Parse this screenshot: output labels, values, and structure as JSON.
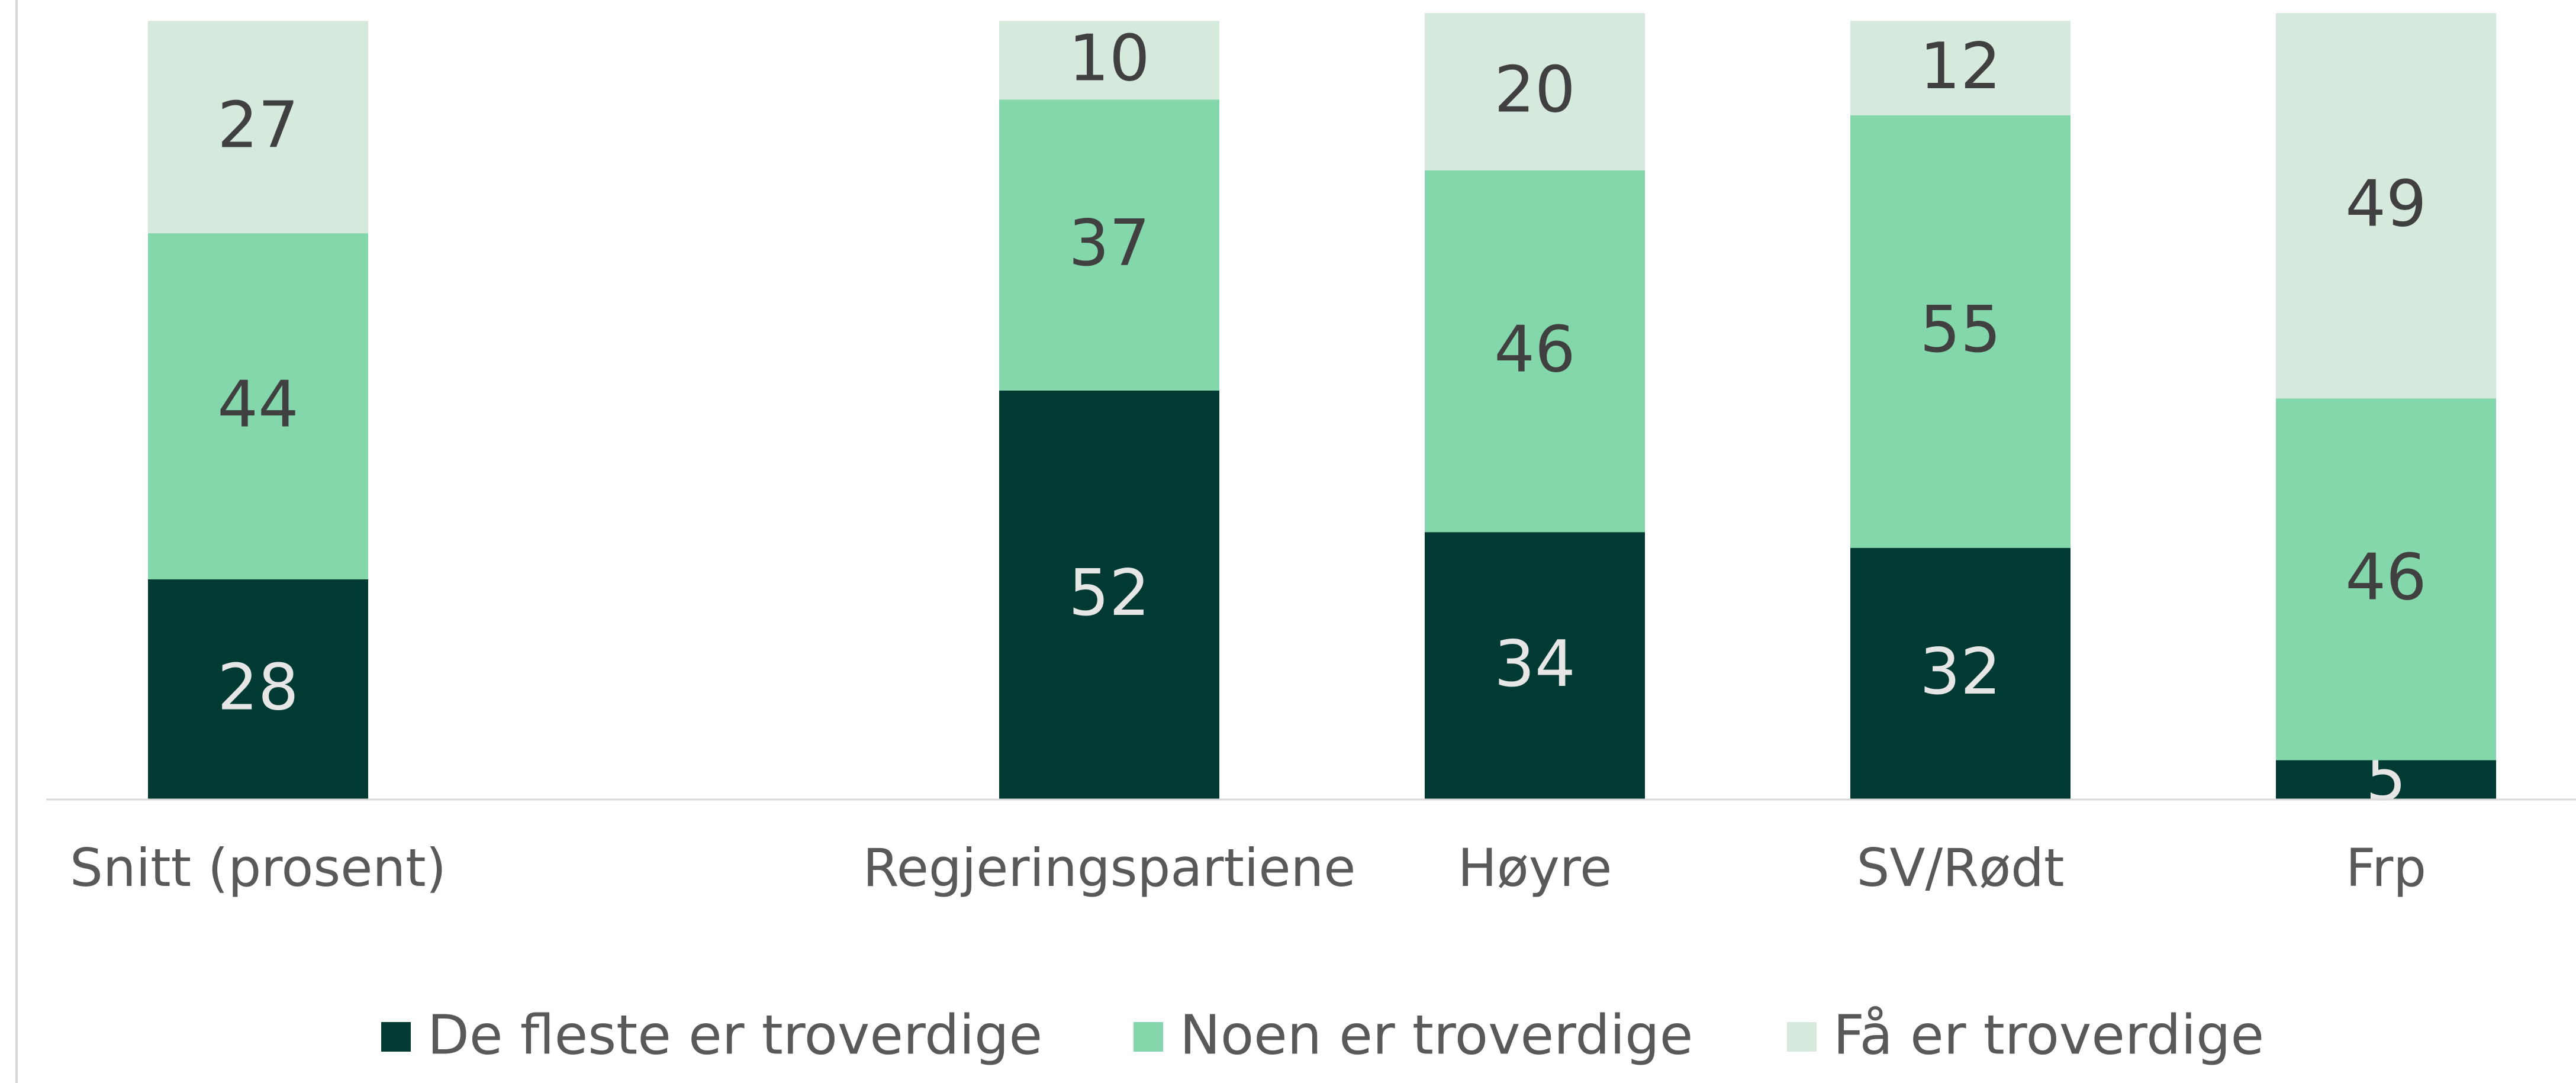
{
  "chart_data": {
    "type": "stacked_bar",
    "categories": [
      "Snitt (prosent)",
      null,
      "Regjeringspartiene",
      "Høyre",
      "SV/Rødt",
      "Frp"
    ],
    "series": [
      {
        "name": "De fleste er troverdige",
        "color": "#003a33",
        "values": [
          28,
          null,
          52,
          34,
          32,
          5
        ]
      },
      {
        "name": "Noen er troverdige",
        "color": "#84d7aa",
        "values": [
          44,
          null,
          37,
          46,
          55,
          46
        ]
      },
      {
        "name": "Få er troverdige",
        "color": "#d5e9dc",
        "values": [
          27,
          null,
          10,
          20,
          12,
          49
        ]
      }
    ],
    "ylim": [
      0,
      100
    ],
    "legend": "bottom"
  }
}
